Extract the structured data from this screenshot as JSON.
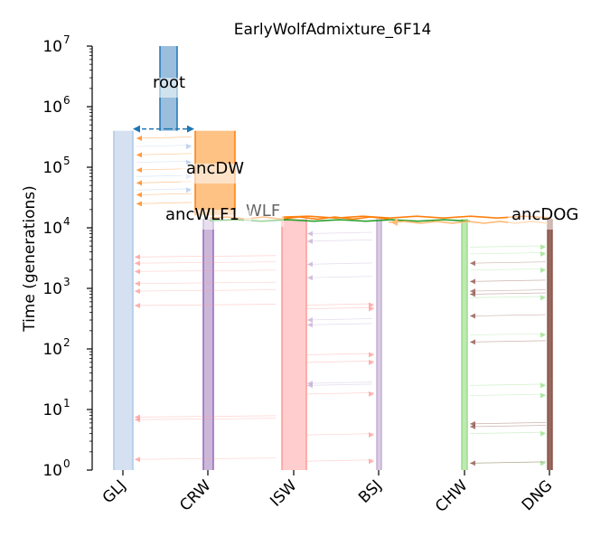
{
  "title": "EarlyWolfAdmixture_6F14",
  "y_axis": {
    "label": "Time (generations)",
    "scale": "log",
    "range": [
      1,
      10000000
    ],
    "tick_labels": [
      {
        "base": "10",
        "exp": "0"
      },
      {
        "base": "10",
        "exp": "1"
      },
      {
        "base": "10",
        "exp": "2"
      },
      {
        "base": "10",
        "exp": "3"
      },
      {
        "base": "10",
        "exp": "4"
      },
      {
        "base": "10",
        "exp": "5"
      },
      {
        "base": "10",
        "exp": "6"
      },
      {
        "base": "10",
        "exp": "7"
      }
    ]
  },
  "x_tick_labels": [
    "GLJ",
    "CRW",
    "ISW",
    "BSJ",
    "CHW",
    "DNG"
  ],
  "demes": [
    {
      "name": "root",
      "start": 10000000,
      "end": 400000,
      "color": "#8fb7d8",
      "edge": "#1f77b4",
      "show_label": true
    },
    {
      "name": "ancDW",
      "start": 400000,
      "end": 16000,
      "color": "#ffbb78",
      "edge": "#ff7f0e",
      "show_label": true
    },
    {
      "name": "ancWLF1",
      "start": 16000,
      "end": 14000,
      "color": "#ffffff",
      "edge": "#ffffff",
      "show_label": true
    },
    {
      "name": "ancDOG",
      "start": 16000,
      "end": 14000,
      "color": "#ffffff",
      "edge": "#ffffff",
      "show_label": true
    },
    {
      "name": "WLF",
      "start": 16000,
      "end": 14000,
      "color": "#ffffff",
      "edge": "#ffffff",
      "show_label": true
    },
    {
      "name": "GLJ",
      "start": 400000,
      "end": 1,
      "color": "#d0ddef",
      "edge": "#aec7e8",
      "show_label": false
    },
    {
      "name": "CRW",
      "start": 14000,
      "end": 1,
      "color": "#c5b0d5",
      "edge": "#9467bd",
      "show_label": false
    },
    {
      "name": "ISW",
      "start": 14000,
      "end": 1,
      "color": "#ffc8c8",
      "edge": "#ff9896",
      "show_label": false
    },
    {
      "name": "BSJ",
      "start": 14000,
      "end": 1,
      "color": "#d5c6e0",
      "edge": "#c5b0d5",
      "show_label": false
    },
    {
      "name": "CHW",
      "start": 14000,
      "end": 1,
      "color": "#b9e6a8",
      "edge": "#98df8a",
      "show_label": false
    },
    {
      "name": "DNG",
      "start": 14000,
      "end": 1,
      "color": "#8c564b",
      "edge": "#8c564b",
      "show_label": false
    }
  ],
  "colors": {
    "root": "#1f77b4",
    "ancDW": "#ff7f0e",
    "WLF": "#2ca02c",
    "ancDOG": "#ffbb78",
    "GLJ": "#aec7e8",
    "CRW": "#9467bd",
    "ISW": "#ff9896",
    "BSJ": "#c5b0d5",
    "CHW": "#98df8a",
    "DNG": "#8c564b"
  }
}
